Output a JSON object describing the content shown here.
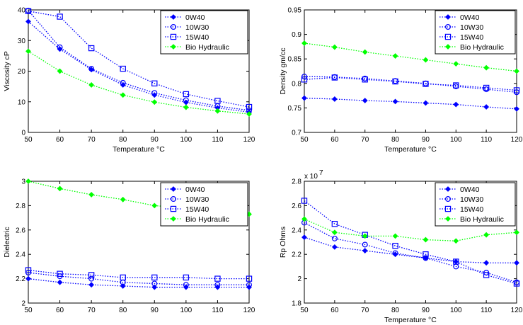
{
  "chart_data": [
    {
      "type": "line",
      "xlabel": "Temperature °C",
      "ylabel": "Viscosity cP",
      "x": [
        50,
        60,
        70,
        80,
        90,
        100,
        110,
        120
      ],
      "xlim": [
        50,
        120
      ],
      "ylim": [
        0,
        40
      ],
      "xticks": [
        "50",
        "60",
        "70",
        "80",
        "90",
        "100",
        "110",
        "120"
      ],
      "yticks": [
        "0",
        "10",
        "20",
        "30",
        "40"
      ],
      "yticks_values": [
        0,
        10,
        20,
        30,
        40
      ],
      "exponent_label": "",
      "legend": "top-right",
      "series": [
        {
          "name": "0W40",
          "marker": "diamond",
          "color": "#0000ff",
          "values": [
            36.2,
            27.2,
            20.5,
            15.5,
            12.2,
            9.8,
            8.0,
            6.6
          ]
        },
        {
          "name": "10W30",
          "marker": "circle",
          "color": "#0000ff",
          "values": [
            39.8,
            27.8,
            20.8,
            16.2,
            12.9,
            10.5,
            8.6,
            7.2
          ]
        },
        {
          "name": "15W40",
          "marker": "square",
          "color": "#0000ff",
          "values": [
            39.6,
            37.8,
            27.5,
            20.8,
            16.0,
            12.5,
            10.3,
            8.3
          ]
        },
        {
          "name": "Bio Hydraulic",
          "marker": "diamond",
          "color": "#00ff00",
          "values": [
            26.5,
            20.0,
            15.5,
            12.2,
            9.9,
            8.2,
            7.0,
            6.0
          ]
        }
      ]
    },
    {
      "type": "line",
      "xlabel": "Temperature °C",
      "ylabel": "Density gm/cc",
      "x": [
        50,
        60,
        70,
        80,
        90,
        100,
        110,
        120
      ],
      "xlim": [
        50,
        120
      ],
      "ylim": [
        0.7,
        0.95
      ],
      "xticks": [
        "50",
        "60",
        "70",
        "80",
        "90",
        "100",
        "110",
        "120"
      ],
      "yticks": [
        "0.7",
        "0.75",
        "0.8",
        "0.85",
        "0.9",
        "0.95"
      ],
      "yticks_values": [
        0.7,
        0.75,
        0.8,
        0.85,
        0.9,
        0.95
      ],
      "exponent_label": "",
      "legend": "top-right",
      "series": [
        {
          "name": "0W40",
          "marker": "diamond",
          "color": "#0000ff",
          "values": [
            0.77,
            0.768,
            0.765,
            0.763,
            0.76,
            0.757,
            0.752,
            0.748
          ]
        },
        {
          "name": "10W30",
          "marker": "circle",
          "color": "#0000ff",
          "values": [
            0.814,
            0.813,
            0.81,
            0.805,
            0.8,
            0.794,
            0.788,
            0.782
          ]
        },
        {
          "name": "15W40",
          "marker": "square",
          "color": "#0000ff",
          "values": [
            0.808,
            0.812,
            0.808,
            0.804,
            0.799,
            0.796,
            0.791,
            0.786
          ]
        },
        {
          "name": "Bio Hydraulic",
          "marker": "diamond",
          "color": "#00ff00",
          "values": [
            0.882,
            0.874,
            0.864,
            0.856,
            0.848,
            0.84,
            0.832,
            0.825
          ]
        }
      ]
    },
    {
      "type": "line",
      "xlabel": "",
      "ylabel": "Dielectric",
      "x": [
        50,
        60,
        70,
        80,
        90,
        100,
        110,
        120
      ],
      "xlim": [
        50,
        120
      ],
      "ylim": [
        2,
        3
      ],
      "xticks": [
        "50",
        "60",
        "70",
        "80",
        "90",
        "100",
        "110",
        "120"
      ],
      "yticks": [
        "2",
        "2.2",
        "2.4",
        "2.6",
        "2.8",
        "3"
      ],
      "yticks_values": [
        2,
        2.2,
        2.4,
        2.6,
        2.8,
        3
      ],
      "exponent_label": "",
      "legend": "top-right",
      "series": [
        {
          "name": "0W40",
          "marker": "diamond",
          "color": "#0000ff",
          "values": [
            2.2,
            2.17,
            2.15,
            2.14,
            2.13,
            2.13,
            2.13,
            2.13
          ]
        },
        {
          "name": "10W30",
          "marker": "circle",
          "color": "#0000ff",
          "values": [
            2.25,
            2.22,
            2.2,
            2.17,
            2.16,
            2.15,
            2.15,
            2.15
          ]
        },
        {
          "name": "15W40",
          "marker": "square",
          "color": "#0000ff",
          "values": [
            2.27,
            2.24,
            2.23,
            2.21,
            2.21,
            2.21,
            2.2,
            2.2
          ]
        },
        {
          "name": "Bio Hydraulic",
          "marker": "diamond",
          "color": "#00ff00",
          "values": [
            3.0,
            2.94,
            2.89,
            2.85,
            2.8,
            2.78,
            2.76,
            2.73
          ]
        }
      ]
    },
    {
      "type": "line",
      "xlabel": "Temperature °C",
      "ylabel": "Rp Ohms",
      "x": [
        50,
        60,
        70,
        80,
        90,
        100,
        110,
        120
      ],
      "xlim": [
        50,
        120
      ],
      "ylim": [
        1.8,
        2.8
      ],
      "xticks": [
        "50",
        "60",
        "70",
        "80",
        "90",
        "100",
        "110",
        "120"
      ],
      "yticks": [
        "1.8",
        "2",
        "2.2",
        "2.4",
        "2.6",
        "2.8"
      ],
      "yticks_values": [
        1.8,
        2.0,
        2.2,
        2.4,
        2.6,
        2.8
      ],
      "exponent_label": "x 10",
      "exponent_power": "7",
      "legend": "top-right",
      "series": [
        {
          "name": "0W40",
          "marker": "diamond",
          "color": "#0000ff",
          "values": [
            2.34,
            2.26,
            2.23,
            2.2,
            2.17,
            2.14,
            2.13,
            2.13
          ]
        },
        {
          "name": "10W30",
          "marker": "circle",
          "color": "#0000ff",
          "values": [
            2.46,
            2.33,
            2.28,
            2.21,
            2.17,
            2.1,
            2.05,
            1.97
          ]
        },
        {
          "name": "15W40",
          "marker": "square",
          "color": "#0000ff",
          "values": [
            2.64,
            2.45,
            2.36,
            2.27,
            2.2,
            2.14,
            2.03,
            1.96
          ]
        },
        {
          "name": "Bio Hydraulic",
          "marker": "diamond",
          "color": "#00ff00",
          "values": [
            2.49,
            2.38,
            2.35,
            2.35,
            2.32,
            2.31,
            2.36,
            2.38
          ]
        }
      ]
    }
  ]
}
